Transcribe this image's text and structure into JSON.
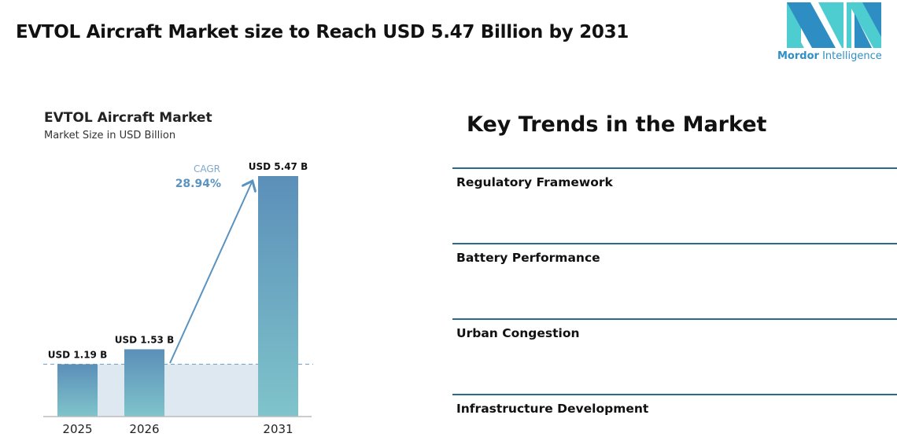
{
  "header": {
    "title": "EVTOL Aircraft Market size to Reach USD 5.47 Billion by 2031"
  },
  "logo": {
    "brand_bold": "Mordor",
    "brand_rest": "Intelligence",
    "colors": {
      "dark": "#2e8ec3",
      "light": "#4ecdd0"
    }
  },
  "chart_data": {
    "type": "bar",
    "title": "EVTOL Aircraft Market",
    "subtitle": "Market Size in USD Billion",
    "categories": [
      "2025",
      "2026",
      "2031"
    ],
    "values": [
      1.19,
      1.53,
      5.47
    ],
    "data_labels": [
      "USD 1.19 B",
      "USD 1.53 B",
      "USD 5.47 B"
    ],
    "annotation": {
      "label": "CAGR",
      "value": "28.94%"
    },
    "colors": {
      "bar_top": "#5b8fb9",
      "bar_bottom": "#7fc4cb",
      "accent": "#5b93c0",
      "band": "#dde8f0"
    },
    "grid": false
  },
  "trends": {
    "title": "Key Trends in the Market",
    "items": [
      "Regulatory Framework",
      "Battery Performance",
      "Urban Congestion",
      "Infrastructure Development"
    ]
  }
}
